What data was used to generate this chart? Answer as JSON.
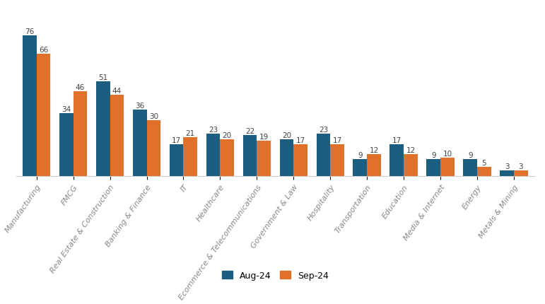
{
  "categories": [
    "Manufacturing",
    "FMCG",
    "Real Estate & Construction",
    "Banking & Finance",
    "IT",
    "Healthcare",
    "Ecommerce & Telecommunications",
    "Government & Law",
    "Hospitality",
    "Transportation",
    "Education",
    "Media & Internet",
    "Energy",
    "Metals & Mining"
  ],
  "aug_values": [
    76,
    34,
    51,
    36,
    17,
    23,
    22,
    20,
    23,
    9,
    17,
    9,
    9,
    3
  ],
  "sep_values": [
    66,
    46,
    44,
    30,
    21,
    20,
    19,
    17,
    17,
    12,
    12,
    10,
    5,
    3
  ],
  "aug_color": "#1b5e82",
  "sep_color": "#e0702a",
  "aug_label": "Aug-24",
  "sep_label": "Sep-24",
  "bar_width": 0.38,
  "label_fontsize": 7.5,
  "tick_fontsize": 8.0,
  "legend_fontsize": 9,
  "background_color": "#ffffff",
  "fig_width": 7.71,
  "fig_height": 4.31,
  "dpi": 100,
  "rotation": 55
}
